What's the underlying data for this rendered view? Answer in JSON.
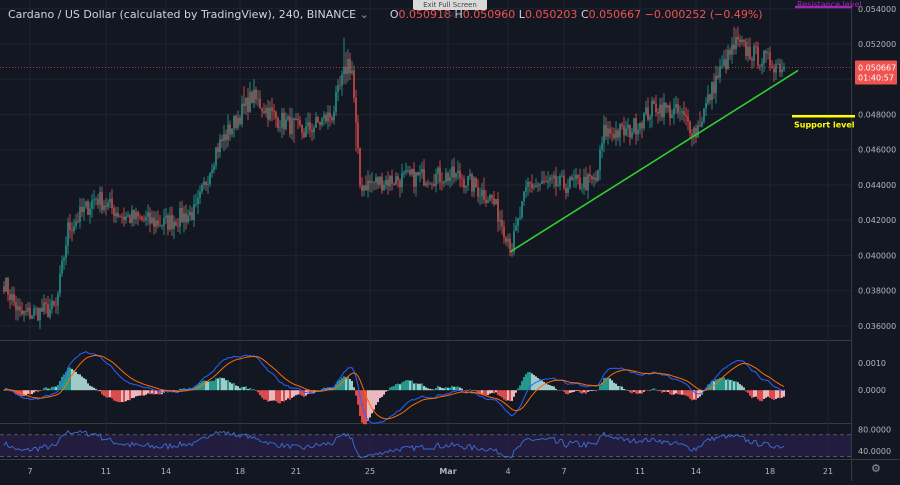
{
  "header": {
    "symbol": "Cardano / US Dollar (calculated by TradingView), 240, BINANCE",
    "chevron": "⌄",
    "o_label": "O",
    "o_value": "0.050918",
    "h_label": "H",
    "h_value": "0.050960",
    "l_label": "L",
    "l_value": "0.050203",
    "c_label": "C",
    "c_value": "0.050667",
    "change": "−0.000252 (−0.49%)"
  },
  "fullscreen_button": "Exit Full Screen (ESC)",
  "settings_icon": "gear-icon",
  "colors": {
    "background": "#131722",
    "up": "#26a69a",
    "down": "#ef5350",
    "trendline": "#32cd32",
    "support": "#ffff00",
    "resistance": "#9c27b0",
    "macd_line": "#2962ff",
    "signal_line": "#ff6d00",
    "rsi_line": "#3d6fd6",
    "rsi_band": "#2a1f4a"
  },
  "chart_data": [
    {
      "type": "candlestick",
      "title": "Cardano / US Dollar (calculated by TradingView), 240, BINANCE",
      "ylim": [
        0.0352,
        0.0545
      ],
      "y_ticks": [
        "0.054000",
        "0.052000",
        "0.050000",
        "0.048000",
        "0.046000",
        "0.044000",
        "0.042000",
        "0.040000",
        "0.038000",
        "0.036000"
      ],
      "x_ticks": [
        "7",
        "11",
        "14",
        "18",
        "21",
        "25",
        "Mar",
        "4",
        "7",
        "11",
        "14",
        "18",
        "21"
      ],
      "last_price": "0.050667",
      "countdown": "01:40:57",
      "anchors": [
        {
          "i": 0,
          "p": 0.0385
        },
        {
          "i": 8,
          "p": 0.0366
        },
        {
          "i": 26,
          "p": 0.037
        },
        {
          "i": 32,
          "p": 0.0415
        },
        {
          "i": 46,
          "p": 0.0433
        },
        {
          "i": 60,
          "p": 0.0422
        },
        {
          "i": 80,
          "p": 0.0418
        },
        {
          "i": 96,
          "p": 0.0425
        },
        {
          "i": 106,
          "p": 0.046
        },
        {
          "i": 124,
          "p": 0.049
        },
        {
          "i": 136,
          "p": 0.0478
        },
        {
          "i": 150,
          "p": 0.047
        },
        {
          "i": 164,
          "p": 0.048
        },
        {
          "i": 172,
          "p": 0.051
        },
        {
          "i": 174,
          "p": 0.0505
        },
        {
          "i": 178,
          "p": 0.044
        },
        {
          "i": 194,
          "p": 0.0443
        },
        {
          "i": 212,
          "p": 0.0445
        },
        {
          "i": 228,
          "p": 0.0445
        },
        {
          "i": 244,
          "p": 0.0432
        },
        {
          "i": 254,
          "p": 0.0405
        },
        {
          "i": 262,
          "p": 0.044
        },
        {
          "i": 280,
          "p": 0.044
        },
        {
          "i": 296,
          "p": 0.0442
        },
        {
          "i": 300,
          "p": 0.047
        },
        {
          "i": 312,
          "p": 0.047
        },
        {
          "i": 326,
          "p": 0.0485
        },
        {
          "i": 338,
          "p": 0.048
        },
        {
          "i": 346,
          "p": 0.047
        },
        {
          "i": 356,
          "p": 0.05
        },
        {
          "i": 366,
          "p": 0.052
        },
        {
          "i": 378,
          "p": 0.0512
        },
        {
          "i": 390,
          "p": 0.0507
        }
      ],
      "annotations": {
        "resistance_label": "Resistance level",
        "resistance_price": 0.0541,
        "support_label": "Support level",
        "support_price": 0.0479,
        "trendline": [
          {
            "i": 253,
            "p": 0.0402
          },
          {
            "i": 397,
            "p": 0.0505
          }
        ]
      }
    },
    {
      "type": "histogram+line",
      "title": "",
      "ylim": [
        -0.0012,
        0.0018
      ],
      "y_ticks": [
        "0.0010",
        "0.0000"
      ]
    },
    {
      "type": "line",
      "title": "",
      "ylim": [
        25,
        90
      ],
      "y_ticks": [
        "80.0000",
        "40.0000"
      ],
      "band": [
        70,
        30
      ]
    }
  ]
}
